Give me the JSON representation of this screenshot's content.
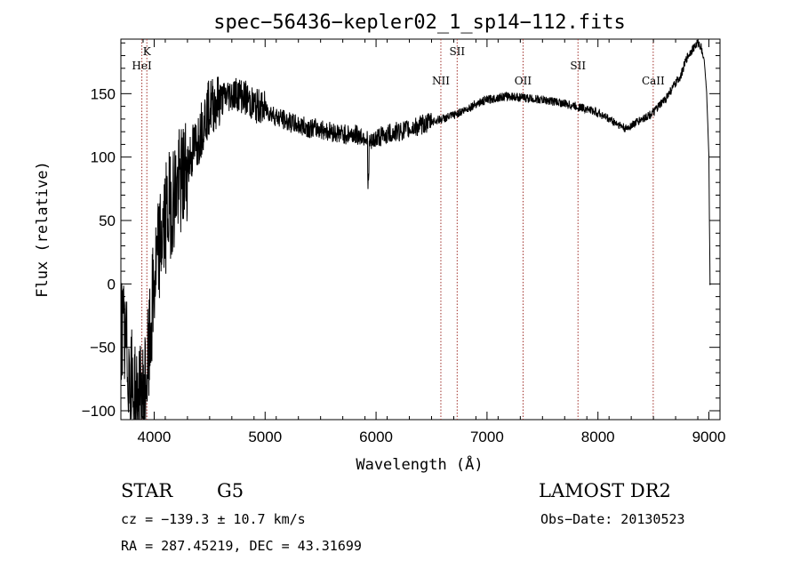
{
  "chart_data": {
    "type": "line",
    "title": "spec−56436−kepler02_1_sp14−112.fits",
    "xlabel": "Wavelength (Å)",
    "ylabel": "Flux (relative)",
    "xlim": [
      3700,
      9100
    ],
    "ylim": [
      -107,
      193
    ],
    "xticks": [
      4000,
      5000,
      6000,
      7000,
      8000,
      9000
    ],
    "yticks": [
      -100,
      -50,
      0,
      50,
      100,
      150
    ],
    "ytick_labels": [
      "−100",
      "−50",
      "0",
      "50",
      "100",
      "150"
    ],
    "spectrum_anchors": [
      [
        3700,
        -30
      ],
      [
        3760,
        -60
      ],
      [
        3800,
        -80
      ],
      [
        3850,
        -95
      ],
      [
        3900,
        -90
      ],
      [
        3950,
        -60
      ],
      [
        4000,
        0
      ],
      [
        4050,
        30
      ],
      [
        4100,
        50
      ],
      [
        4150,
        65
      ],
      [
        4200,
        75
      ],
      [
        4250,
        80
      ],
      [
        4300,
        95
      ],
      [
        4350,
        105
      ],
      [
        4400,
        115
      ],
      [
        4450,
        130
      ],
      [
        4500,
        140
      ],
      [
        4550,
        142
      ],
      [
        4600,
        145
      ],
      [
        4650,
        148
      ],
      [
        4700,
        150
      ],
      [
        4750,
        150
      ],
      [
        4800,
        148
      ],
      [
        4850,
        145
      ],
      [
        4900,
        140
      ],
      [
        4950,
        140
      ],
      [
        5000,
        138
      ],
      [
        5100,
        132
      ],
      [
        5200,
        128
      ],
      [
        5300,
        125
      ],
      [
        5400,
        123
      ],
      [
        5500,
        122
      ],
      [
        5600,
        120
      ],
      [
        5700,
        118
      ],
      [
        5800,
        118
      ],
      [
        5900,
        116
      ],
      [
        5950,
        110
      ],
      [
        6000,
        115
      ],
      [
        6100,
        118
      ],
      [
        6200,
        120
      ],
      [
        6300,
        122
      ],
      [
        6400,
        125
      ],
      [
        6500,
        128
      ],
      [
        6600,
        130
      ],
      [
        6700,
        133
      ],
      [
        6800,
        137
      ],
      [
        6900,
        142
      ],
      [
        7000,
        145
      ],
      [
        7100,
        147
      ],
      [
        7200,
        148
      ],
      [
        7300,
        147
      ],
      [
        7400,
        146
      ],
      [
        7500,
        145
      ],
      [
        7600,
        144
      ],
      [
        7700,
        142
      ],
      [
        7800,
        140
      ],
      [
        7900,
        138
      ],
      [
        8000,
        135
      ],
      [
        8100,
        130
      ],
      [
        8200,
        125
      ],
      [
        8250,
        122
      ],
      [
        8300,
        125
      ],
      [
        8400,
        130
      ],
      [
        8500,
        135
      ],
      [
        8600,
        145
      ],
      [
        8700,
        158
      ],
      [
        8750,
        165
      ],
      [
        8800,
        178
      ],
      [
        8850,
        185
      ],
      [
        8900,
        190
      ],
      [
        8930,
        187
      ],
      [
        8960,
        175
      ],
      [
        8980,
        150
      ],
      [
        9000,
        100
      ],
      [
        9010,
        0
      ]
    ],
    "line_markers": [
      {
        "name": "K",
        "x": 3934,
        "tier": "top"
      },
      {
        "name": "HeI",
        "x": 3889,
        "tier": "second"
      },
      {
        "name": "NII",
        "x": 6584,
        "tier": "low"
      },
      {
        "name": "SII",
        "x": 6731,
        "tier": "top"
      },
      {
        "name": "OII",
        "x": 7325,
        "tier": "low"
      },
      {
        "name": "SII",
        "x": 7820,
        "tier": "second"
      },
      {
        "name": "CaII",
        "x": 8498,
        "tier": "low"
      }
    ],
    "marker_color": "#a0302a",
    "grid": false,
    "legend": "none"
  },
  "info": {
    "object_class": "STAR",
    "subclass": "G5",
    "survey": "LAMOST DR2",
    "velocity": "cz = −139.3 ± 10.7 km/s",
    "obs_date": "Obs−Date: 20130523",
    "coords": "RA = 287.45219, DEC =  43.31699"
  }
}
